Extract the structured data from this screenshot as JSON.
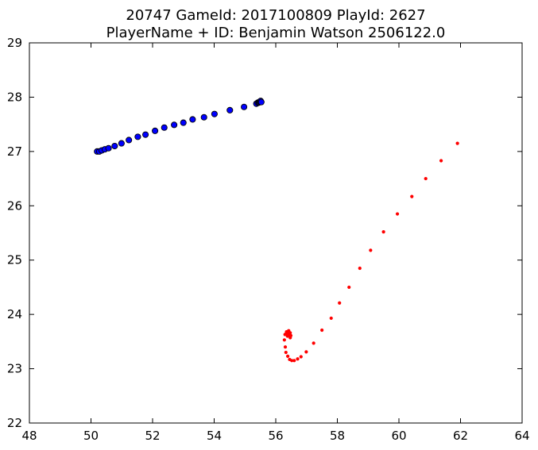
{
  "chart_data": {
    "type": "scatter",
    "title": "20747 GameId: 2017100809 PlayId: 2627\nPlayerName + ID: Benjamin Watson 2506122.0",
    "xlabel": "",
    "ylabel": "",
    "xlim": [
      48,
      64
    ],
    "ylim": [
      22,
      29
    ],
    "x_ticks": [
      48,
      50,
      52,
      54,
      56,
      58,
      60,
      62,
      64
    ],
    "y_ticks": [
      22,
      23,
      24,
      25,
      26,
      27,
      28,
      29
    ],
    "x_tick_labels": [
      "48",
      "50",
      "52",
      "54",
      "56",
      "58",
      "60",
      "62",
      "64"
    ],
    "y_tick_labels": [
      "22",
      "23",
      "24",
      "25",
      "26",
      "27",
      "28",
      "29"
    ],
    "grid": false,
    "legend": "none",
    "series": [
      {
        "color": "#0000ff",
        "marker": "large-circle-black-edge",
        "points": [
          [
            50.2,
            27.0
          ],
          [
            50.27,
            27.0
          ],
          [
            50.35,
            27.02
          ],
          [
            50.45,
            27.04
          ],
          [
            50.57,
            27.06
          ],
          [
            50.77,
            27.1
          ],
          [
            50.99,
            27.15
          ],
          [
            51.23,
            27.21
          ],
          [
            51.52,
            27.27
          ],
          [
            51.77,
            27.31
          ],
          [
            52.08,
            27.38
          ],
          [
            52.38,
            27.44
          ],
          [
            52.7,
            27.49
          ],
          [
            53.0,
            27.53
          ],
          [
            53.3,
            27.59
          ],
          [
            53.67,
            27.63
          ],
          [
            54.01,
            27.69
          ],
          [
            54.51,
            27.76
          ],
          [
            54.97,
            27.82
          ],
          [
            55.37,
            27.88
          ],
          [
            55.42,
            27.9
          ],
          [
            55.45,
            27.9
          ],
          [
            55.47,
            27.91
          ],
          [
            55.49,
            27.92
          ],
          [
            55.51,
            27.93
          ],
          [
            55.53,
            27.91
          ]
        ]
      },
      {
        "color": "#ff0000",
        "marker": "small-dot",
        "points": [
          [
            61.9,
            27.15
          ],
          [
            61.37,
            26.83
          ],
          [
            60.87,
            26.5
          ],
          [
            60.42,
            26.17
          ],
          [
            59.95,
            25.85
          ],
          [
            59.5,
            25.52
          ],
          [
            59.08,
            25.18
          ],
          [
            58.73,
            24.85
          ],
          [
            58.38,
            24.5
          ],
          [
            58.07,
            24.21
          ],
          [
            57.8,
            23.93
          ],
          [
            57.5,
            23.71
          ],
          [
            57.23,
            23.47
          ],
          [
            56.99,
            23.31
          ],
          [
            56.82,
            23.22
          ],
          [
            56.71,
            23.18
          ],
          [
            56.6,
            23.15
          ],
          [
            56.52,
            23.15
          ],
          [
            56.45,
            23.17
          ],
          [
            56.39,
            23.23
          ],
          [
            56.33,
            23.3
          ],
          [
            56.31,
            23.4
          ],
          [
            56.28,
            23.53
          ],
          [
            56.3,
            23.63
          ],
          [
            56.35,
            23.68
          ],
          [
            56.42,
            23.7
          ],
          [
            56.47,
            23.66
          ],
          [
            56.49,
            23.61
          ],
          [
            56.47,
            23.57
          ],
          [
            56.43,
            23.62
          ],
          [
            56.39,
            23.66
          ],
          [
            56.36,
            23.67
          ],
          [
            56.33,
            23.64
          ],
          [
            56.38,
            23.6
          ]
        ]
      }
    ]
  }
}
